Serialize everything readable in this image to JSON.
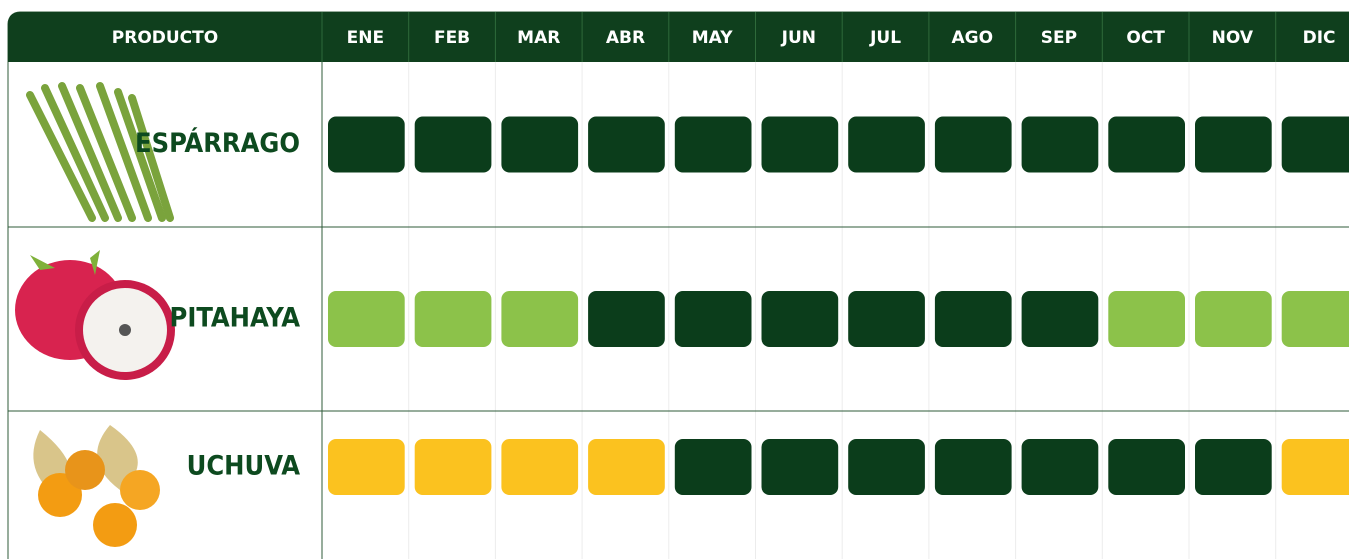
{
  "header": {
    "columns": [
      "PRODUCTO",
      "ENE",
      "FEB",
      "MAR",
      "ABR",
      "MAY",
      "JUN",
      "JUL",
      "AGO",
      "SEP",
      "OCT",
      "NOV",
      "DIC"
    ]
  },
  "table": {
    "rows": [
      {
        "name": "ESPÁRRAGO",
        "cells": [
          "#0b3d1b",
          "#0b3d1b",
          "#0b3d1b",
          "#0b3d1b",
          "#0b3d1b",
          "#0b3d1b",
          "#0b3d1b",
          "#0b3d1b",
          "#0b3d1b",
          "#0b3d1b",
          "#0b3d1b",
          "#0b3d1b"
        ]
      },
      {
        "name": "PITAHAYA",
        "cells": [
          "#8cc24a",
          "#8cc24a",
          "#8cc24a",
          "#0b3d1b",
          "#0b3d1b",
          "#0b3d1b",
          "#0b3d1b",
          "#0b3d1b",
          "#0b3d1b",
          "#8cc24a",
          "#8cc24a",
          "#8cc24a"
        ]
      },
      {
        "name": "UCHUVA",
        "cells": [
          "#fbc21f",
          "#fbc21f",
          "#fbc21f",
          "#fbc21f",
          "#0b3d1b",
          "#0b3d1b",
          "#0b3d1b",
          "#0b3d1b",
          "#0b3d1b",
          "#0b3d1b",
          "#0b3d1b",
          "#fbc21f"
        ]
      }
    ]
  }
}
